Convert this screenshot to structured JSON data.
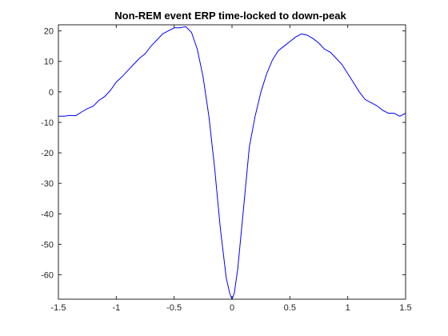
{
  "chart_data": {
    "type": "line",
    "title": "Non-REM event ERP time-locked to down-peak",
    "xlabel": "",
    "ylabel": "",
    "xlim": [
      -1.5,
      1.5
    ],
    "ylim": [
      -68,
      22
    ],
    "grid": false,
    "x_ticks": [
      -1.5,
      -1,
      -0.5,
      0,
      0.5,
      1,
      1.5
    ],
    "x_tick_labels": [
      "-1.5",
      "-1",
      "-0.5",
      "0",
      "0.5",
      "1",
      "1.5"
    ],
    "y_ticks": [
      20,
      10,
      0,
      -10,
      -20,
      -30,
      -40,
      -50,
      -60
    ],
    "y_tick_labels": [
      "20",
      "10",
      "0",
      "-10",
      "-20",
      "-30",
      "-40",
      "-50",
      "-60"
    ],
    "series": [
      {
        "color": "#0000ff",
        "x": [
          -1.5,
          -1.45,
          -1.4,
          -1.35,
          -1.3,
          -1.25,
          -1.2,
          -1.15,
          -1.1,
          -1.05,
          -1.0,
          -0.95,
          -0.9,
          -0.85,
          -0.8,
          -0.75,
          -0.7,
          -0.65,
          -0.6,
          -0.55,
          -0.5,
          -0.45,
          -0.4,
          -0.35,
          -0.3,
          -0.25,
          -0.2,
          -0.15,
          -0.1,
          -0.05,
          -0.02,
          0.0,
          0.02,
          0.05,
          0.1,
          0.15,
          0.2,
          0.25,
          0.3,
          0.35,
          0.4,
          0.45,
          0.5,
          0.55,
          0.6,
          0.65,
          0.7,
          0.75,
          0.8,
          0.85,
          0.9,
          0.95,
          1.0,
          1.05,
          1.1,
          1.15,
          1.2,
          1.25,
          1.3,
          1.35,
          1.4,
          1.45,
          1.5
        ],
        "y": [
          -8,
          -8,
          -7.7,
          -7.8,
          -6.6,
          -5.5,
          -4.7,
          -2.8,
          -1.5,
          0.5,
          3.2,
          5,
          7,
          9,
          11,
          12.5,
          15,
          17,
          19,
          20,
          21,
          21,
          21.4,
          19.5,
          14,
          5,
          -8,
          -25,
          -45,
          -61,
          -66,
          -68,
          -66,
          -58,
          -38,
          -18,
          -8,
          0,
          6,
          10.5,
          13.5,
          15,
          16.5,
          18,
          19,
          18.6,
          17.5,
          16,
          14,
          13,
          11,
          9,
          6,
          3,
          0,
          -2.5,
          -3.5,
          -4.5,
          -6,
          -7,
          -7,
          -8,
          -7
        ]
      }
    ]
  }
}
